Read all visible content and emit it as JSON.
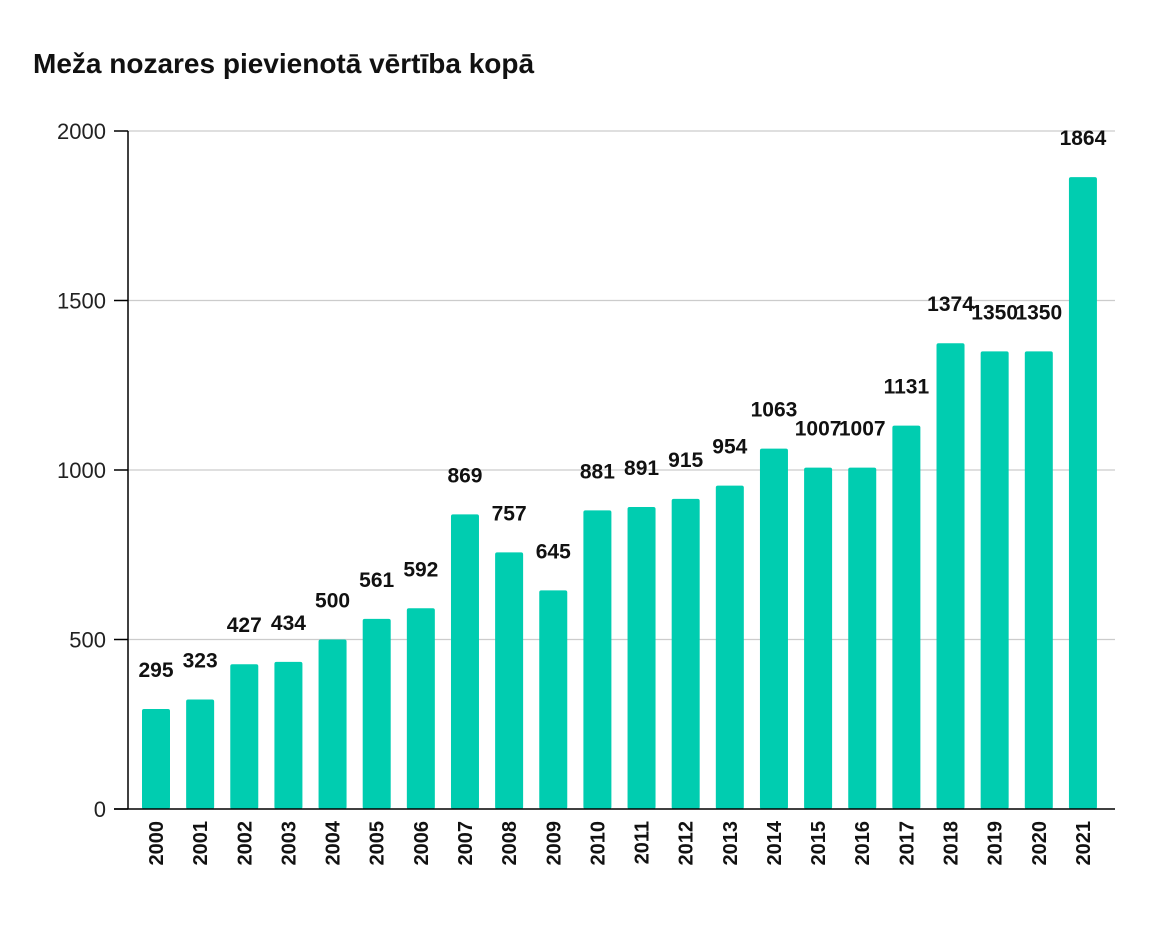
{
  "chart_data": {
    "type": "bar",
    "title": "Meža nozares pievienotā vērtība kopā",
    "xlabel": "",
    "ylabel": "",
    "ylim": [
      0,
      2000
    ],
    "yticks": [
      0,
      500,
      1000,
      1500,
      2000
    ],
    "grid": true,
    "bar_color": "#00cdb0",
    "categories": [
      "2000",
      "2001",
      "2002",
      "2003",
      "2004",
      "2005",
      "2006",
      "2007",
      "2008",
      "2009",
      "2010",
      "2011",
      "2012",
      "2013",
      "2014",
      "2015",
      "2016",
      "2017",
      "2018",
      "2019",
      "2020",
      "2021"
    ],
    "values": [
      295,
      323,
      427,
      434,
      500,
      561,
      592,
      869,
      757,
      645,
      881,
      891,
      915,
      954,
      1063,
      1007,
      1007,
      1131,
      1374,
      1350,
      1350,
      1864
    ]
  }
}
